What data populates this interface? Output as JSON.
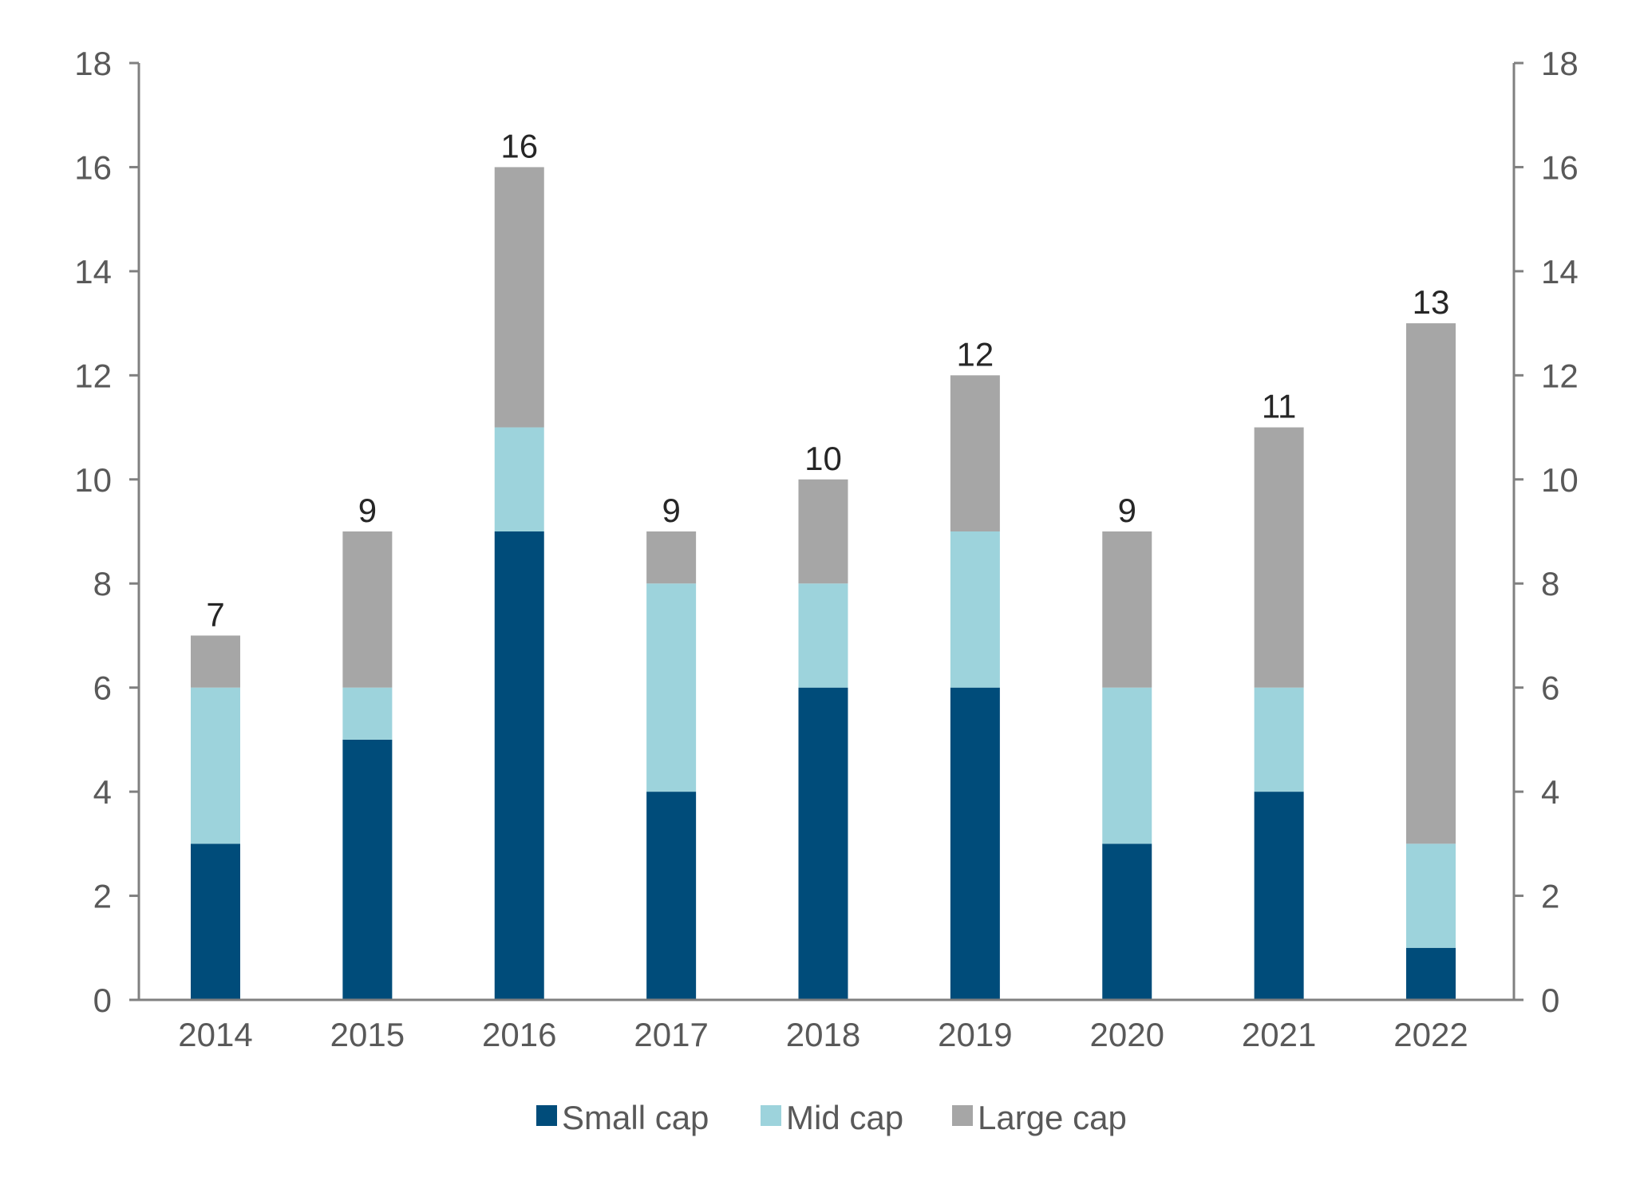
{
  "chart_data": {
    "type": "bar",
    "stacked": true,
    "categories": [
      "2014",
      "2015",
      "2016",
      "2017",
      "2018",
      "2019",
      "2020",
      "2021",
      "2022"
    ],
    "series": [
      {
        "name": "Small cap",
        "color": "#004c7a",
        "values": [
          3,
          5,
          9,
          4,
          6,
          6,
          3,
          4,
          1
        ]
      },
      {
        "name": "Mid cap",
        "color": "#9dd3dc",
        "values": [
          3,
          1,
          2,
          4,
          2,
          3,
          3,
          2,
          2
        ]
      },
      {
        "name": "Large cap",
        "color": "#a6a6a6",
        "values": [
          1,
          3,
          5,
          1,
          2,
          3,
          3,
          5,
          10
        ]
      }
    ],
    "totals": [
      "7",
      "9",
      "16",
      "9",
      "10",
      "12",
      "9",
      "11",
      "13"
    ],
    "ylim": [
      0,
      18
    ],
    "yticks": [
      "0",
      "2",
      "4",
      "6",
      "8",
      "10",
      "12",
      "14",
      "16",
      "18"
    ],
    "secondary_y": true,
    "grid": false,
    "legend_position": "bottom"
  }
}
